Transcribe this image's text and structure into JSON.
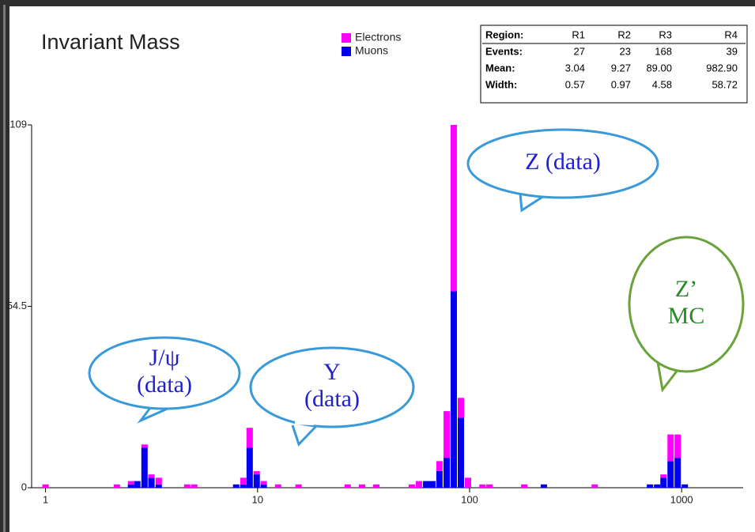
{
  "chart_data": {
    "type": "bar",
    "stacked": true,
    "log_x": true,
    "title": "Invariant Mass",
    "x": [
      1.0,
      2.17,
      2.53,
      2.71,
      2.93,
      3.16,
      3.42,
      4.66,
      5.03,
      7.93,
      8.57,
      9.18,
      9.91,
      10.7,
      12.5,
      15.6,
      26.6,
      31.1,
      36.3,
      53.4,
      57.7,
      62.4,
      66.8,
      72.1,
      78.0,
      84.2,
      91.0,
      98.3,
      115,
      124,
      181,
      224,
      389,
      709,
      766,
      821,
      887,
      958,
      1035
    ],
    "series": [
      {
        "name": "Muons",
        "color": "#0000ee",
        "values": [
          0,
          0,
          1,
          2,
          12,
          3,
          1,
          0,
          0,
          1,
          1,
          12,
          4,
          1,
          0,
          0,
          0,
          0,
          0,
          0,
          0,
          2,
          2,
          5,
          9,
          59,
          21,
          0,
          0,
          0,
          0,
          1,
          0,
          1,
          1,
          3,
          8,
          9,
          1
        ]
      },
      {
        "name": "Electrons",
        "color": "#ff00ff",
        "values": [
          1,
          1,
          1,
          0,
          1,
          1,
          2,
          1,
          1,
          0,
          2,
          6,
          1,
          1,
          1,
          1,
          1,
          1,
          1,
          1,
          2,
          0,
          0,
          3,
          14,
          50,
          6,
          3,
          1,
          1,
          1,
          0,
          1,
          0,
          0,
          1,
          8,
          7,
          0
        ]
      }
    ],
    "xlim": [
      0.86,
      1950
    ],
    "xticks": [
      1,
      10,
      100,
      1000
    ],
    "ylim": [
      0,
      109
    ],
    "yticks": [
      0,
      54.5,
      109
    ],
    "legend": "top-center",
    "stats_table": {
      "header": [
        "Region:",
        "R1",
        "R2",
        "R3",
        "R4"
      ],
      "rows": [
        [
          "Events:",
          "27",
          "23",
          "168",
          "39"
        ],
        [
          "Mean:",
          "3.04",
          "9.27",
          "89.00",
          "982.90"
        ],
        [
          "Width:",
          "0.57",
          "0.97",
          "4.58",
          "58.72"
        ]
      ]
    },
    "annotations": [
      {
        "lines": [
          "J/ψ",
          "(data)"
        ]
      },
      {
        "lines": [
          "Y",
          "(data)"
        ]
      },
      {
        "lines": [
          "Z (data)"
        ]
      },
      {
        "lines": [
          "Z’",
          "MC"
        ]
      }
    ]
  }
}
